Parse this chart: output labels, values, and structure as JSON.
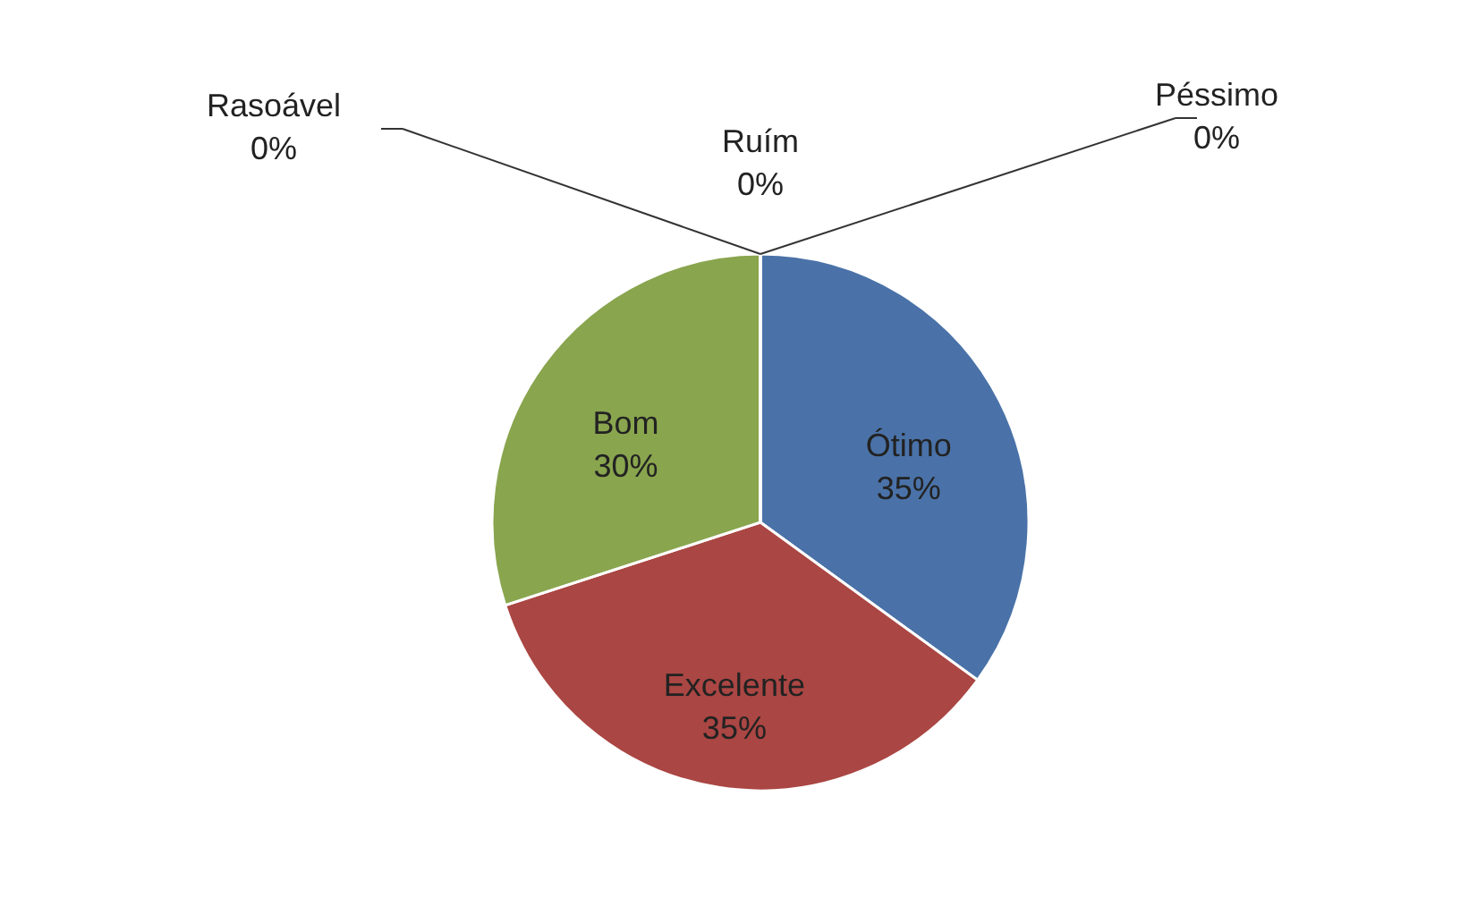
{
  "chart_data": {
    "type": "pie",
    "categories": [
      "Ótimo",
      "Excelente",
      "Bom",
      "Rasoável",
      "Ruím",
      "Péssimo"
    ],
    "values": [
      35,
      35,
      30,
      0,
      0,
      0
    ],
    "value_labels": [
      "35%",
      "35%",
      "30%",
      "0%",
      "0%",
      "0%"
    ],
    "colors": [
      "#4a72a8",
      "#aa4643",
      "#89a54e",
      "#7d60a0",
      "#4198af",
      "#db843d"
    ]
  }
}
